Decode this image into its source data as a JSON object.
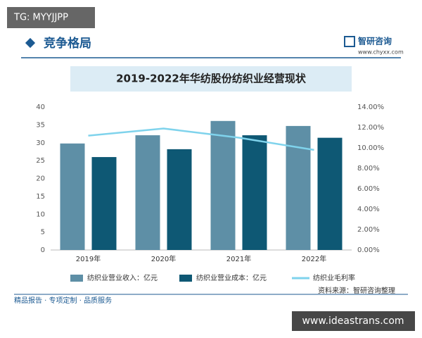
{
  "watermark_tag": "TG: MYYJJPP",
  "header": {
    "section": "竞争格局",
    "brand": "智研咨询",
    "brand_url": "www.chyxx.com"
  },
  "chart_data": {
    "type": "bar",
    "title": "2019-2022年华纺股份纺织业经营现状",
    "categories": [
      "2019年",
      "2020年",
      "2021年",
      "2022年"
    ],
    "series": [
      {
        "name": "纺织业营业收入：亿元",
        "color": "#5e8fa6",
        "values": [
          29.8,
          32.1,
          36.1,
          34.7
        ]
      },
      {
        "name": "纺织业营业成本：亿元",
        "color": "#0e5874",
        "values": [
          26.0,
          28.2,
          32.1,
          31.4
        ]
      },
      {
        "name": "纺织业毛利率",
        "color": "#7fd3ec",
        "type": "line",
        "axis": "y2",
        "values": [
          11.2,
          11.9,
          11.0,
          9.8
        ]
      }
    ],
    "ylim": [
      0,
      40
    ],
    "yticks": [
      0,
      5,
      10,
      15,
      20,
      25,
      30,
      35,
      40
    ],
    "y2lim": [
      0,
      14
    ],
    "y2ticks": [
      {
        "value": 0,
        "label": "0.00%"
      },
      {
        "value": 2,
        "label": "2.00%"
      },
      {
        "value": 4,
        "label": "4.00%"
      },
      {
        "value": 6,
        "label": "6.00%"
      },
      {
        "value": 8,
        "label": "8.00%"
      },
      {
        "value": 10,
        "label": "10.00%"
      },
      {
        "value": 12,
        "label": "12.00%"
      },
      {
        "value": 14,
        "label": "14.00%"
      }
    ],
    "grid": false,
    "source": "资料来源：智研咨询整理"
  },
  "footer": {
    "slogan": "精品报告 · 专项定制 · 品质服务"
  },
  "watermark_site": "www.ideastrans.com"
}
